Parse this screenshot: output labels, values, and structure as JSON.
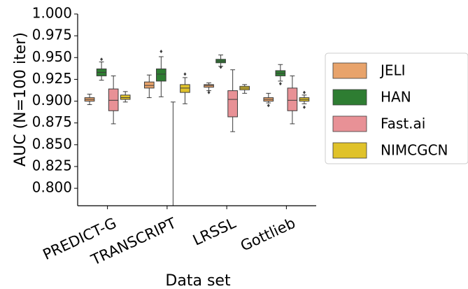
{
  "chart_data": {
    "type": "box",
    "title": "",
    "xlabel": "Data set",
    "ylabel": "AUC (N=100 iter)",
    "ylim": [
      0.78,
      1.0
    ],
    "yticks": [
      "0.800",
      "0.825",
      "0.850",
      "0.875",
      "0.900",
      "0.925",
      "0.950",
      "0.975",
      "1.000"
    ],
    "grid": false,
    "legend_position": "right",
    "categories": [
      "PREDICT-G",
      "TRANSCRIPT",
      "LRSSL",
      "Gottlieb"
    ],
    "series": [
      {
        "name": "JELI",
        "color": "#e8a36b",
        "boxes": [
          {
            "whisker_low": 0.896,
            "q1": 0.9,
            "median": 0.902,
            "q3": 0.904,
            "whisker_high": 0.908,
            "outliers": []
          },
          {
            "whisker_low": 0.904,
            "q1": 0.915,
            "median": 0.918,
            "q3": 0.922,
            "whisker_high": 0.93,
            "outliers": []
          },
          {
            "whisker_low": 0.912,
            "q1": 0.916,
            "median": 0.918,
            "q3": 0.919,
            "whisker_high": 0.921,
            "outliers": [
              0.91
            ]
          },
          {
            "whisker_low": 0.898,
            "q1": 0.9,
            "median": 0.902,
            "q3": 0.904,
            "whisker_high": 0.909,
            "outliers": [
              0.895
            ]
          }
        ]
      },
      {
        "name": "HAN",
        "color": "#2e7d32",
        "boxes": [
          {
            "whisker_low": 0.924,
            "q1": 0.929,
            "median": 0.933,
            "q3": 0.937,
            "whisker_high": 0.945,
            "outliers": [
              0.948
            ]
          },
          {
            "whisker_low": 0.905,
            "q1": 0.923,
            "median": 0.931,
            "q3": 0.937,
            "whisker_high": 0.951,
            "outliers": [
              0.957
            ]
          },
          {
            "whisker_low": 0.94,
            "q1": 0.944,
            "median": 0.946,
            "q3": 0.948,
            "whisker_high": 0.953,
            "outliers": [
              0.939
            ]
          },
          {
            "whisker_low": 0.923,
            "q1": 0.929,
            "median": 0.932,
            "q3": 0.935,
            "whisker_high": 0.942,
            "outliers": [
              0.92
            ]
          }
        ]
      },
      {
        "name": "Fast.ai",
        "color": "#e89196",
        "boxes": [
          {
            "whisker_low": 0.874,
            "q1": 0.889,
            "median": 0.901,
            "q3": 0.914,
            "whisker_high": 0.929,
            "outliers": []
          },
          {
            "whisker_low": 0.78,
            "q1": 0.78,
            "median": 0.78,
            "q3": 0.78,
            "whisker_high": 0.899,
            "outliers": []
          },
          {
            "whisker_low": 0.865,
            "q1": 0.882,
            "median": 0.902,
            "q3": 0.912,
            "whisker_high": 0.936,
            "outliers": []
          },
          {
            "whisker_low": 0.874,
            "q1": 0.889,
            "median": 0.901,
            "q3": 0.915,
            "whisker_high": 0.929,
            "outliers": []
          }
        ]
      },
      {
        "name": "NIMCGCN",
        "color": "#e0c22a",
        "boxes": [
          {
            "whisker_low": 0.899,
            "q1": 0.902,
            "median": 0.904,
            "q3": 0.907,
            "whisker_high": 0.911,
            "outliers": []
          },
          {
            "whisker_low": 0.897,
            "q1": 0.91,
            "median": 0.915,
            "q3": 0.919,
            "whisker_high": 0.927,
            "outliers": [
              0.931
            ]
          },
          {
            "whisker_low": 0.909,
            "q1": 0.913,
            "median": 0.915,
            "q3": 0.917,
            "whisker_high": 0.919,
            "outliers": []
          },
          {
            "whisker_low": 0.897,
            "q1": 0.9,
            "median": 0.902,
            "q3": 0.904,
            "whisker_high": 0.907,
            "outliers": [
              0.893,
              0.91
            ]
          }
        ]
      }
    ]
  }
}
